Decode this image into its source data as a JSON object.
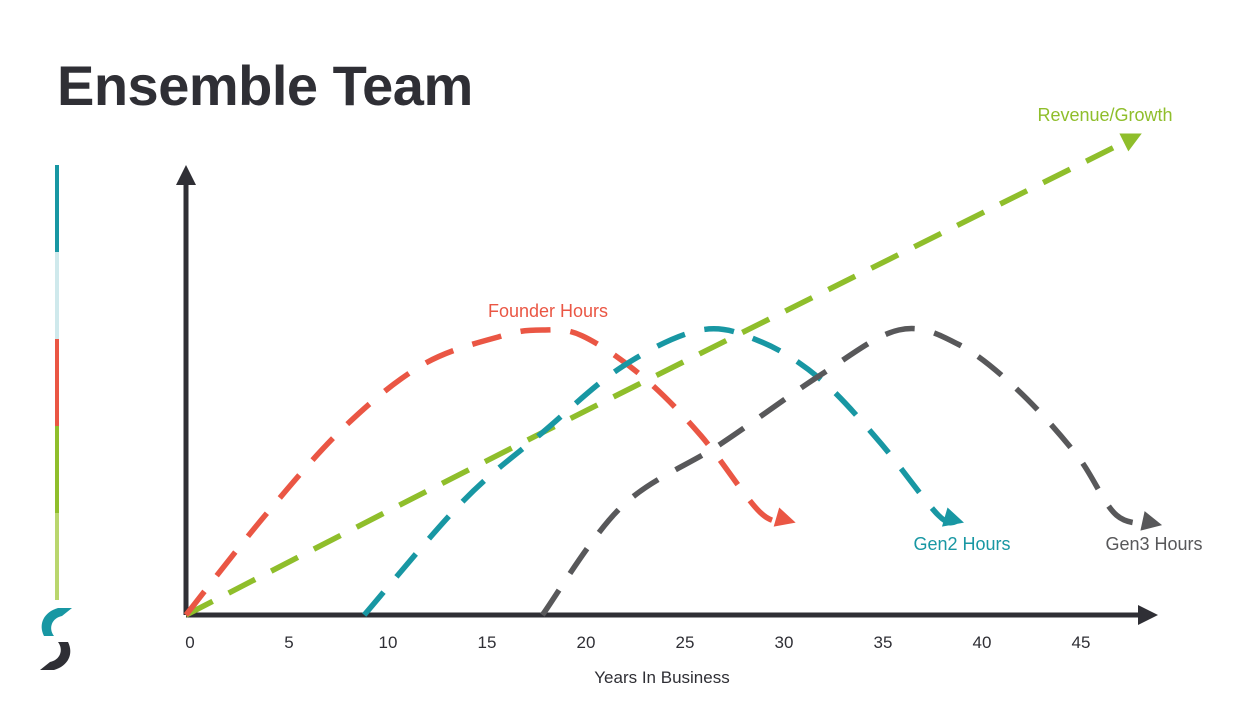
{
  "title": "Ensemble Team",
  "colors": {
    "title": "#2f2f35",
    "axis": "#2f2f35",
    "founder": "#ea5644",
    "gen2": "#1897a3",
    "gen3": "#58585a",
    "revenue": "#8fbe2b",
    "sidebar": [
      "#1897a3",
      "#cfe9ec",
      "#ea5644",
      "#8fbe2b",
      "#b9d66d"
    ]
  },
  "logo_icon": "refresh-arrow-logo-icon",
  "chart_data": {
    "type": "line",
    "title": "",
    "xlabel": "Years In Business",
    "ylabel": "",
    "xlim": [
      0,
      49
    ],
    "ylim": [
      0,
      100
    ],
    "x_ticks": [
      0,
      5,
      10,
      15,
      20,
      25,
      30,
      35,
      40,
      45
    ],
    "grid": false,
    "legend": "inline labels",
    "series": [
      {
        "name": "Revenue/Growth",
        "color_key": "revenue",
        "style": "dashed-arrow",
        "points": [
          [
            0,
            0
          ],
          [
            18,
            64
          ],
          [
            48,
            168
          ]
        ]
      },
      {
        "name": "Founder Hours",
        "color_key": "founder",
        "style": "dashed-arrow",
        "points": [
          [
            0,
            0
          ],
          [
            4,
            35
          ],
          [
            8,
            66
          ],
          [
            12,
            88
          ],
          [
            16,
            98
          ],
          [
            18,
            100
          ],
          [
            20,
            98
          ],
          [
            23,
            84
          ],
          [
            26,
            63
          ],
          [
            29,
            36
          ],
          [
            30.5,
            33
          ]
        ]
      },
      {
        "name": "Gen2 Hours",
        "color_key": "gen2",
        "style": "dashed-arrow",
        "points": [
          [
            9,
            0
          ],
          [
            14,
            40
          ],
          [
            18,
            64
          ],
          [
            22,
            87
          ],
          [
            26,
            100
          ],
          [
            29,
            96
          ],
          [
            32,
            83
          ],
          [
            35,
            61
          ],
          [
            38,
            35
          ],
          [
            39,
            33
          ]
        ]
      },
      {
        "name": "Gen3 Hours",
        "color_key": "gen3",
        "style": "dashed-arrow",
        "points": [
          [
            18,
            0
          ],
          [
            22,
            38
          ],
          [
            27,
            60
          ],
          [
            32,
            84
          ],
          [
            36,
            100
          ],
          [
            39,
            95
          ],
          [
            42,
            79
          ],
          [
            45,
            56
          ],
          [
            47,
            35
          ],
          [
            49,
            32
          ]
        ]
      }
    ]
  }
}
